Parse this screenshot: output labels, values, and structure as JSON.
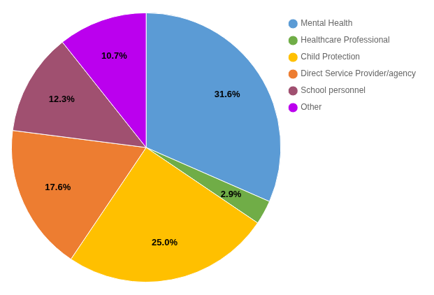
{
  "chart_data": {
    "type": "pie",
    "categories": [
      "Mental Health",
      "Healthcare Professional",
      "Child Protection",
      "Direct Service Provider/agency",
      "School personnel",
      "Other"
    ],
    "values": [
      31.6,
      2.9,
      25.0,
      17.6,
      12.3,
      10.7
    ],
    "value_labels": [
      "31.6%",
      "2.9%",
      "25.0%",
      "17.6%",
      "12.3%",
      "10.7%"
    ],
    "colors": [
      "#5B9BD5",
      "#70AD47",
      "#FFC000",
      "#ED7D31",
      "#A05070",
      "#BB00EE"
    ],
    "data_labels": true,
    "legend": "right"
  }
}
